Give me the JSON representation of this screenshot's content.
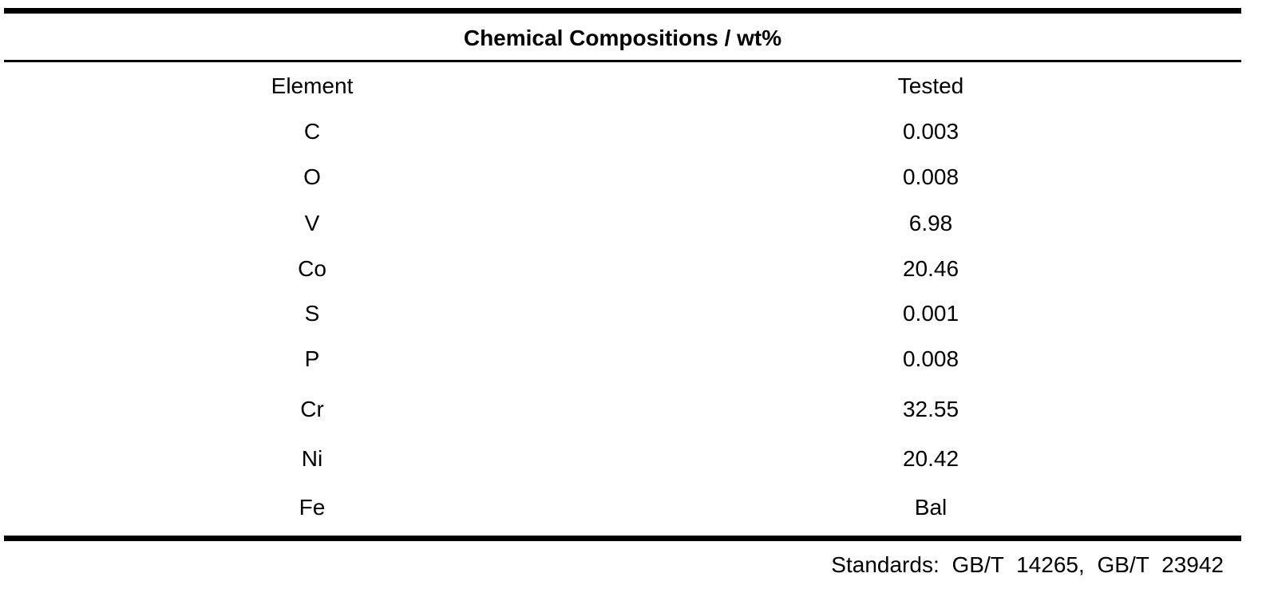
{
  "table": {
    "title": "Chemical Compositions / wt%",
    "columns": [
      "Element",
      "Tested"
    ],
    "rows": [
      [
        "C",
        "0.003"
      ],
      [
        "O",
        "0.008"
      ],
      [
        "V",
        "6.98"
      ],
      [
        "Co",
        "20.46"
      ],
      [
        "S",
        "0.001"
      ],
      [
        "P",
        "0.008"
      ],
      [
        "Cr",
        "32.55"
      ],
      [
        "Ni",
        "20.42"
      ],
      [
        "Fe",
        "Bal"
      ]
    ],
    "footnote": "Standards: GB/T 14265, GB/T 23942"
  }
}
